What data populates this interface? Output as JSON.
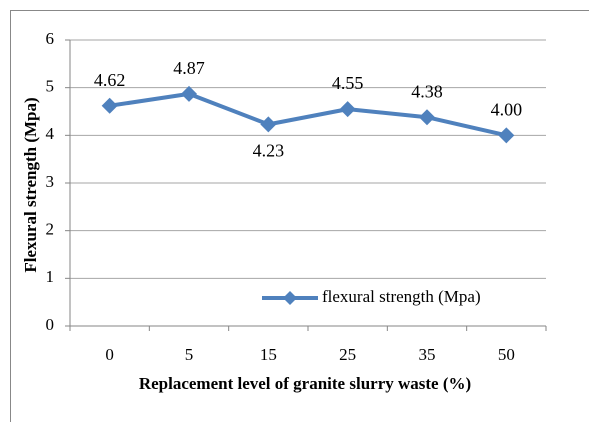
{
  "chart_data": {
    "type": "line",
    "x_label": "Replacement level of granite slurry waste (%)",
    "y_label": "Flexural strength (Mpa)",
    "categories": [
      "0",
      "5",
      "15",
      "25",
      "35",
      "50"
    ],
    "series": [
      {
        "name": "flexural strength (Mpa)",
        "color": "#4f81bd",
        "values": [
          4.62,
          4.87,
          4.23,
          4.55,
          4.38,
          4.0
        ],
        "value_labels": [
          "4.62",
          "4.87",
          "4.23",
          "4.55",
          "4.38",
          "4.00"
        ]
      }
    ],
    "ylim": [
      0,
      6
    ],
    "yticks": [
      0,
      1,
      2,
      3,
      4,
      5,
      6
    ],
    "grid": true,
    "legend": "lower right"
  }
}
